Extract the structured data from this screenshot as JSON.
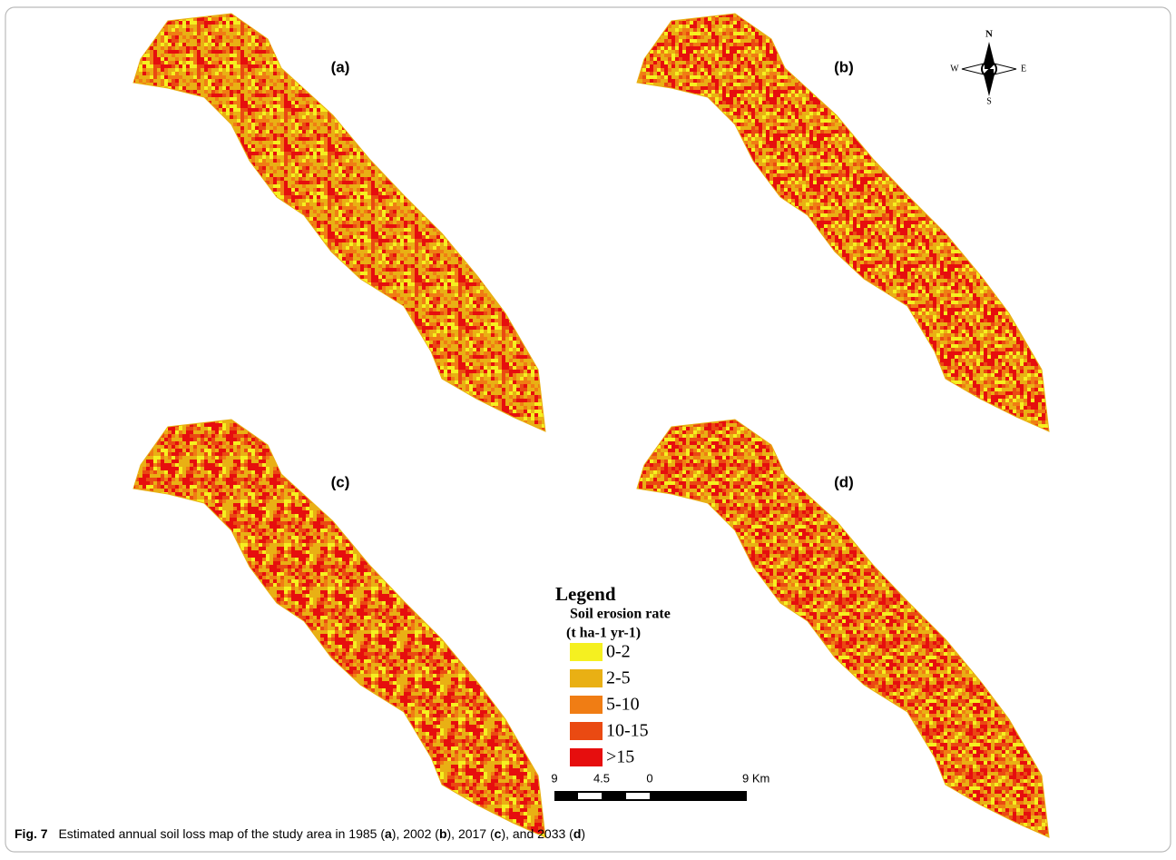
{
  "panels": [
    {
      "label": "(a)"
    },
    {
      "label": "(b)"
    },
    {
      "label": "(c)"
    },
    {
      "label": "(d)"
    }
  ],
  "compass": {
    "north": "N",
    "east": "E",
    "south": "S",
    "west": "W"
  },
  "legend": {
    "title": "Legend",
    "subtitle": "Soil erosion rate",
    "units": "(t ha-1 yr-1)",
    "classes": [
      {
        "label": "0-2",
        "color": "#f5f020"
      },
      {
        "label": "2-5",
        "color": "#e9b014"
      },
      {
        "label": "5-10",
        "color": "#f07d14"
      },
      {
        "label": "10-15",
        "color": "#ea4a12"
      },
      {
        "label": ">15",
        "color": "#e60e0e"
      }
    ]
  },
  "scale_bar": {
    "labels": [
      "9",
      "4.5",
      "0",
      "9 Km"
    ]
  },
  "caption": {
    "label": "Fig. 7",
    "segments": [
      {
        "text": "Estimated annual soil loss map of the study area in 1985 ("
      },
      {
        "text": "a",
        "bold": true
      },
      {
        "text": "), 2002 ("
      },
      {
        "text": "b",
        "bold": true
      },
      {
        "text": "), 2017 ("
      },
      {
        "text": "c",
        "bold": true
      },
      {
        "text": "), and 2033 ("
      },
      {
        "text": "d",
        "bold": true
      },
      {
        "text": ")"
      }
    ]
  }
}
